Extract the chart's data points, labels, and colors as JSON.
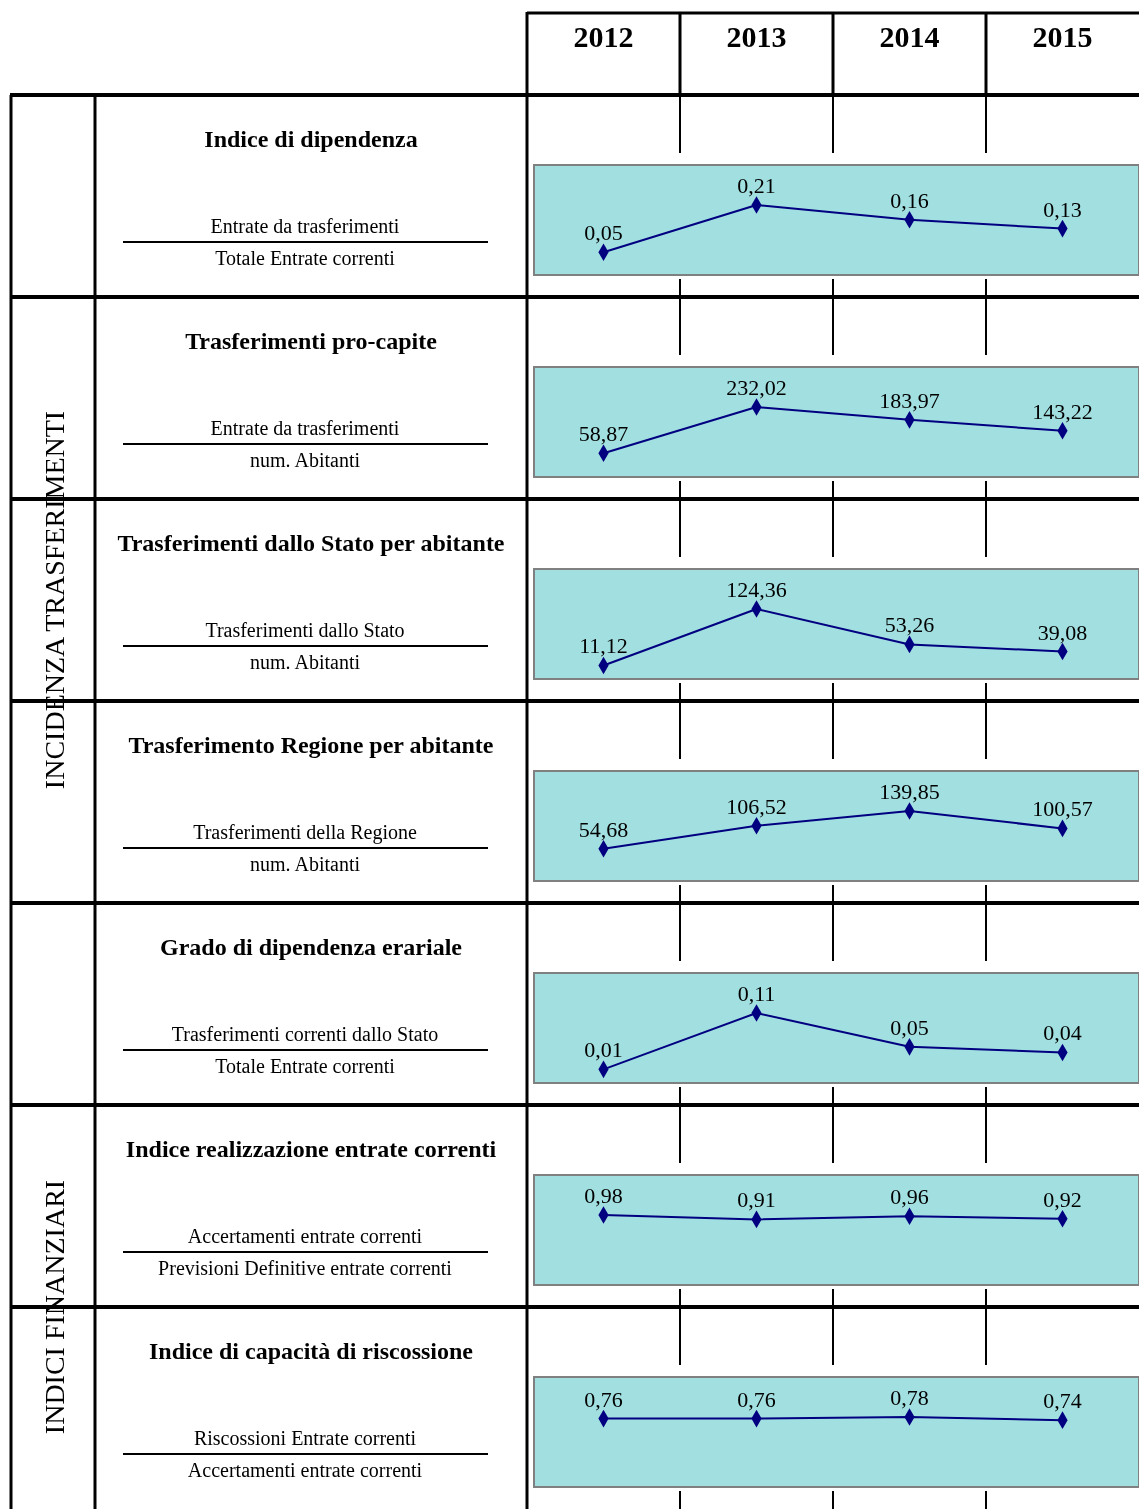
{
  "chart_data": [
    {
      "type": "line",
      "title": "Indice di dipendenza",
      "annotations": [
        "INCIDENZA TRASFERIMENTI",
        "Entrate da trasferimenti",
        "Totale Entrate correnti"
      ],
      "categories": [
        "2012",
        "2013",
        "2014",
        "2015"
      ],
      "values": [
        0.05,
        0.21,
        0.16,
        0.13
      ],
      "value_labels": [
        "0,05",
        "0,21",
        "0,16",
        "0,13"
      ],
      "color": "#000080",
      "marker": "diamond",
      "tick_labels": "x"
    },
    {
      "type": "line",
      "title": "Trasferimenti pro-capite",
      "annotations": [
        "Entrate da trasferimenti",
        "num. Abitanti"
      ],
      "categories": [
        null,
        null,
        null,
        null
      ],
      "values": [
        58.87,
        232.02,
        183.97,
        143.22
      ],
      "value_labels": [
        "58,87",
        "232,02",
        "183,97",
        "143,22"
      ],
      "color": "#000080",
      "marker": "diamond",
      "tick_labels": false
    },
    {
      "type": "line",
      "title": "Trasferimenti dallo Stato per abitante",
      "annotations": [
        "Trasferimenti dallo Stato",
        "num. Abitanti"
      ],
      "categories": [
        null,
        null,
        null,
        null
      ],
      "values": [
        11.12,
        124.36,
        53.26,
        39.08
      ],
      "value_labels": [
        "11,12",
        "124,36",
        "53,26",
        "39,08"
      ],
      "color": "#000080",
      "marker": "diamond",
      "tick_labels": false
    },
    {
      "type": "line",
      "title": "Trasferimento Regione per abitante",
      "annotations": [
        "Trasferimenti della Regione",
        "num. Abitanti"
      ],
      "categories": [
        null,
        null,
        null,
        null
      ],
      "values": [
        54.68,
        106.52,
        139.85,
        100.57
      ],
      "value_labels": [
        "54,68",
        "106,52",
        "139,85",
        "100,57"
      ],
      "color": "#000080",
      "marker": "diamond",
      "tick_labels": false
    },
    {
      "type": "line",
      "title": "Grado di dipendenza erariale",
      "annotations": [
        "Trasferimenti correnti dallo Stato",
        "Totale Entrate correnti"
      ],
      "categories": [
        null,
        null,
        null,
        null
      ],
      "values": [
        0.01,
        0.11,
        0.05,
        0.04
      ],
      "value_labels": [
        "0,01",
        "0,11",
        "0,05",
        "0,04"
      ],
      "color": "#000080",
      "marker": "diamond",
      "tick_labels": false
    },
    {
      "type": "line",
      "title": "Indice realizzazione entrate correnti",
      "annotations": [
        "INDICI FINANZIARI",
        "Accertamenti entrate correnti",
        "Previsioni Definitive entrate correnti"
      ],
      "categories": [
        null,
        null,
        null,
        null
      ],
      "values": [
        0.98,
        0.91,
        0.96,
        0.92
      ],
      "value_labels": [
        "0,98",
        "0,91",
        "0,96",
        "0,92"
      ],
      "color": "#000080",
      "marker": "diamond",
      "tick_labels": false
    },
    {
      "type": "line",
      "title": "Indice di capacità di riscossione",
      "annotations": [
        "Riscossioni Entrate correnti",
        "Accertamenti entrate correnti"
      ],
      "categories": [
        null,
        null,
        null,
        null
      ],
      "values": [
        0.76,
        0.76,
        0.78,
        0.74
      ],
      "value_labels": [
        "0,76",
        "0,76",
        "0,78",
        "0,74"
      ],
      "color": "#000080",
      "marker": "diamond",
      "tick_labels": false
    }
  ]
}
